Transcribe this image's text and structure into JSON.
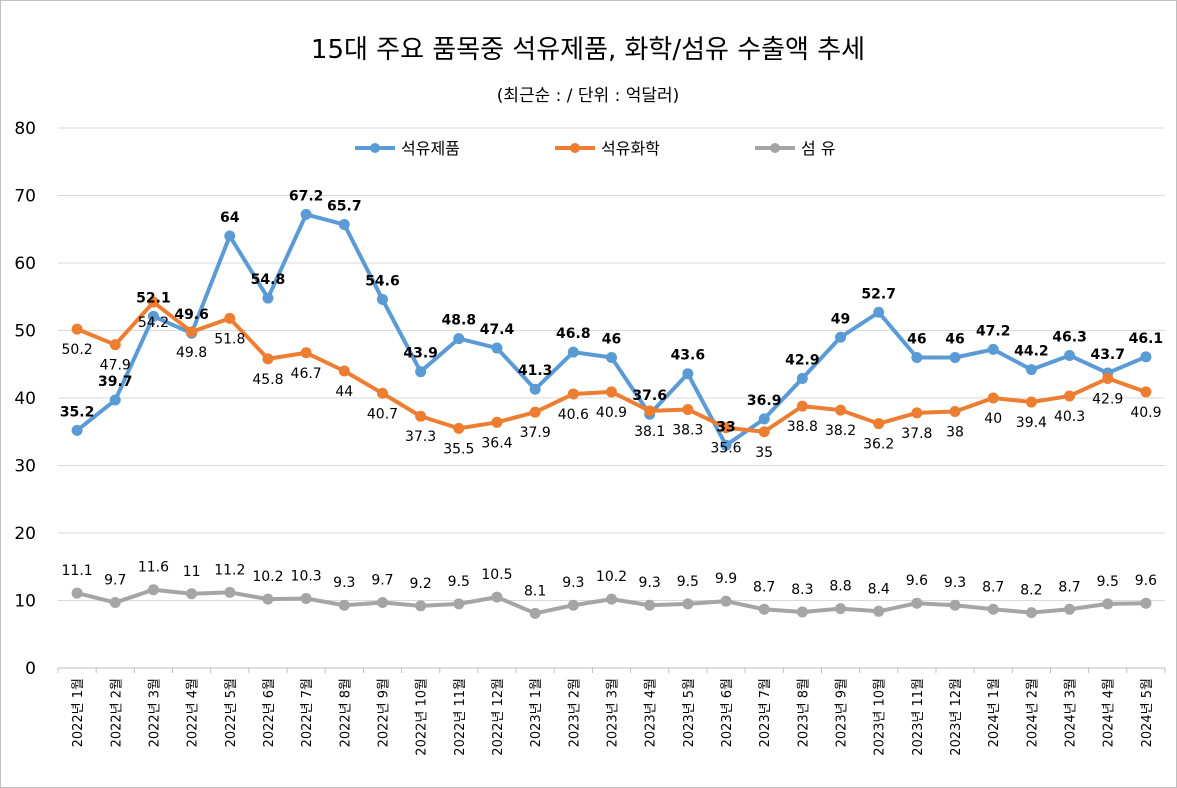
{
  "chart_data": {
    "type": "line",
    "title": "15대 주요 품목중 석유제품, 화학/섬유 수출액 추세",
    "subtitle": "(최근순 :  / 단위 : 억달러)",
    "categories": [
      "2022년 1월",
      "2022년 2월",
      "2022년 3월",
      "2022년 4월",
      "2022년 5월",
      "2022년 6월",
      "2022년 7월",
      "2022년 8월",
      "2022년 9월",
      "2022년 10월",
      "2022년 11월",
      "2022년 12월",
      "2023년 1월",
      "2023년 2월",
      "2023년 3월",
      "2023년 4월",
      "2023년 5월",
      "2023년 6월",
      "2023년 7월",
      "2023년 8월",
      "2023년 9월",
      "2023년 10월",
      "2023년 11월",
      "2023년 12월",
      "2024년 1월",
      "2024년 2월",
      "2024년 3월",
      "2024년 4월",
      "2024년 5월"
    ],
    "ylim": [
      0,
      80
    ],
    "yticks": [
      0,
      10,
      20,
      30,
      40,
      50,
      60,
      70,
      80
    ],
    "grid": true,
    "legend_position": "top",
    "series": [
      {
        "name": "석유제품",
        "color": "#5b9bd5",
        "label_style": "bold-above",
        "values": [
          35.2,
          39.7,
          52.1,
          49.6,
          64,
          54.8,
          67.2,
          65.7,
          54.6,
          43.9,
          48.8,
          47.4,
          41.3,
          46.8,
          46,
          37.6,
          43.6,
          33,
          36.9,
          42.9,
          49,
          52.7,
          46,
          46,
          47.2,
          44.2,
          46.3,
          43.7,
          46.1
        ]
      },
      {
        "name": "석유화학",
        "color": "#ed7d31",
        "label_style": "below",
        "values": [
          50.2,
          47.9,
          54.2,
          49.8,
          51.8,
          45.8,
          46.7,
          44,
          40.7,
          37.3,
          35.5,
          36.4,
          37.9,
          40.6,
          40.9,
          38.1,
          38.3,
          35.6,
          35,
          38.8,
          38.2,
          36.2,
          37.8,
          38,
          40,
          39.4,
          40.3,
          42.9,
          40.9
        ]
      },
      {
        "name": "섬 유",
        "color": "#a5a5a5",
        "label_style": "above",
        "values": [
          11.1,
          9.7,
          11.6,
          11,
          11.2,
          10.2,
          10.3,
          9.3,
          9.7,
          9.2,
          9.5,
          10.5,
          8.1,
          9.3,
          10.2,
          9.3,
          9.5,
          9.9,
          8.7,
          8.3,
          8.8,
          8.4,
          9.6,
          9.3,
          8.7,
          8.2,
          8.7,
          9.5,
          9.6
        ]
      }
    ]
  }
}
